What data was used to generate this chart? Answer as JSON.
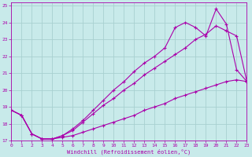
{
  "xlabel": "Windchill (Refroidissement éolien,°C)",
  "bg_color": "#c8eaea",
  "grid_color": "#a8d0d0",
  "line_color": "#aa00aa",
  "line1_x": [
    0,
    1,
    2,
    3,
    4,
    5,
    6,
    7,
    8,
    9,
    10,
    11,
    12,
    13,
    14,
    15,
    16,
    17,
    18,
    19,
    20,
    21,
    22,
    23
  ],
  "line1_y": [
    18.8,
    18.5,
    17.4,
    17.1,
    17.1,
    17.2,
    17.3,
    17.5,
    17.7,
    17.9,
    18.1,
    18.3,
    18.5,
    18.8,
    19.0,
    19.2,
    19.5,
    19.7,
    19.9,
    20.1,
    20.3,
    20.5,
    20.6,
    20.5
  ],
  "line2_x": [
    0,
    1,
    2,
    3,
    4,
    5,
    6,
    7,
    8,
    9,
    10,
    11,
    12,
    13,
    14,
    15,
    16,
    17,
    18,
    19,
    20,
    21,
    22,
    23
  ],
  "line2_y": [
    18.8,
    18.5,
    17.4,
    17.1,
    17.1,
    17.3,
    17.6,
    18.1,
    18.6,
    19.1,
    19.5,
    20.0,
    20.4,
    20.9,
    21.3,
    21.7,
    22.1,
    22.5,
    23.0,
    23.3,
    23.8,
    23.5,
    23.2,
    20.5
  ],
  "line3_x": [
    0,
    1,
    2,
    3,
    4,
    5,
    6,
    7,
    8,
    9,
    10,
    11,
    12,
    13,
    14,
    15,
    16,
    17,
    18,
    19,
    20,
    21,
    22,
    23
  ],
  "line3_y": [
    18.8,
    18.5,
    17.4,
    17.1,
    17.1,
    17.3,
    17.7,
    18.2,
    18.8,
    19.4,
    20.0,
    20.5,
    21.1,
    21.6,
    22.0,
    22.5,
    23.7,
    24.0,
    23.7,
    23.2,
    24.8,
    23.9,
    21.2,
    20.5
  ],
  "xlim": [
    0,
    23
  ],
  "ylim": [
    17.0,
    25.2
  ],
  "yticks": [
    17,
    18,
    19,
    20,
    21,
    22,
    23,
    24,
    25
  ],
  "xticks": [
    0,
    1,
    2,
    3,
    4,
    5,
    6,
    7,
    8,
    9,
    10,
    11,
    12,
    13,
    14,
    15,
    16,
    17,
    18,
    19,
    20,
    21,
    22,
    23
  ],
  "marker": "+",
  "markersize": 3,
  "linewidth": 0.8
}
